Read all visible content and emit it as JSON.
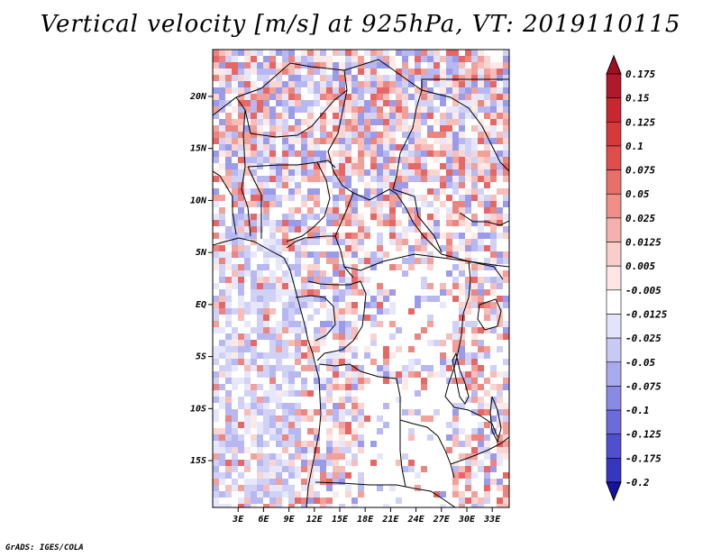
{
  "title": "Vertical velocity [m/s] at 925hPa, VT: 2019110115",
  "credit": "GrADS: IGES/COLA",
  "map": {
    "lat_labels": [
      "20N",
      "15N",
      "10N",
      "5N",
      "EQ",
      "5S",
      "10S",
      "15S"
    ],
    "lon_labels": [
      "3E",
      "6E",
      "9E",
      "12E",
      "15E",
      "18E",
      "21E",
      "24E",
      "27E",
      "30E",
      "33E"
    ],
    "lat_range": [
      -19.5,
      24.5
    ],
    "lon_range": [
      0,
      35
    ]
  },
  "legend": {
    "levels": [
      {
        "label": "0.175",
        "color": "#b2182b"
      },
      {
        "label": "0.15",
        "color": "#c9272f"
      },
      {
        "label": "0.125",
        "color": "#d6393a"
      },
      {
        "label": "0.1",
        "color": "#e04e4b"
      },
      {
        "label": "0.075",
        "color": "#e8706a"
      },
      {
        "label": "0.05",
        "color": "#ef8f88"
      },
      {
        "label": "0.025",
        "color": "#f5b2ad"
      },
      {
        "label": "0.0125",
        "color": "#f9cdc9"
      },
      {
        "label": "0.005",
        "color": "#fde6e3"
      },
      {
        "label": "-0.005",
        "color": "#ffffff"
      },
      {
        "label": "-0.0125",
        "color": "#e3e3fb"
      },
      {
        "label": "-0.025",
        "color": "#c9c9f5"
      },
      {
        "label": "-0.05",
        "color": "#aaaaee"
      },
      {
        "label": "-0.075",
        "color": "#8a8ae6"
      },
      {
        "label": "-0.1",
        "color": "#6b6bdc"
      },
      {
        "label": "-0.125",
        "color": "#4f4fd0"
      },
      {
        "label": "-0.175",
        "color": "#3636c2"
      },
      {
        "label": "-0.2",
        "color": "#1f1fb0"
      }
    ],
    "top_arrow_color": "#a01020",
    "bottom_arrow_color": "#1414a0"
  }
}
